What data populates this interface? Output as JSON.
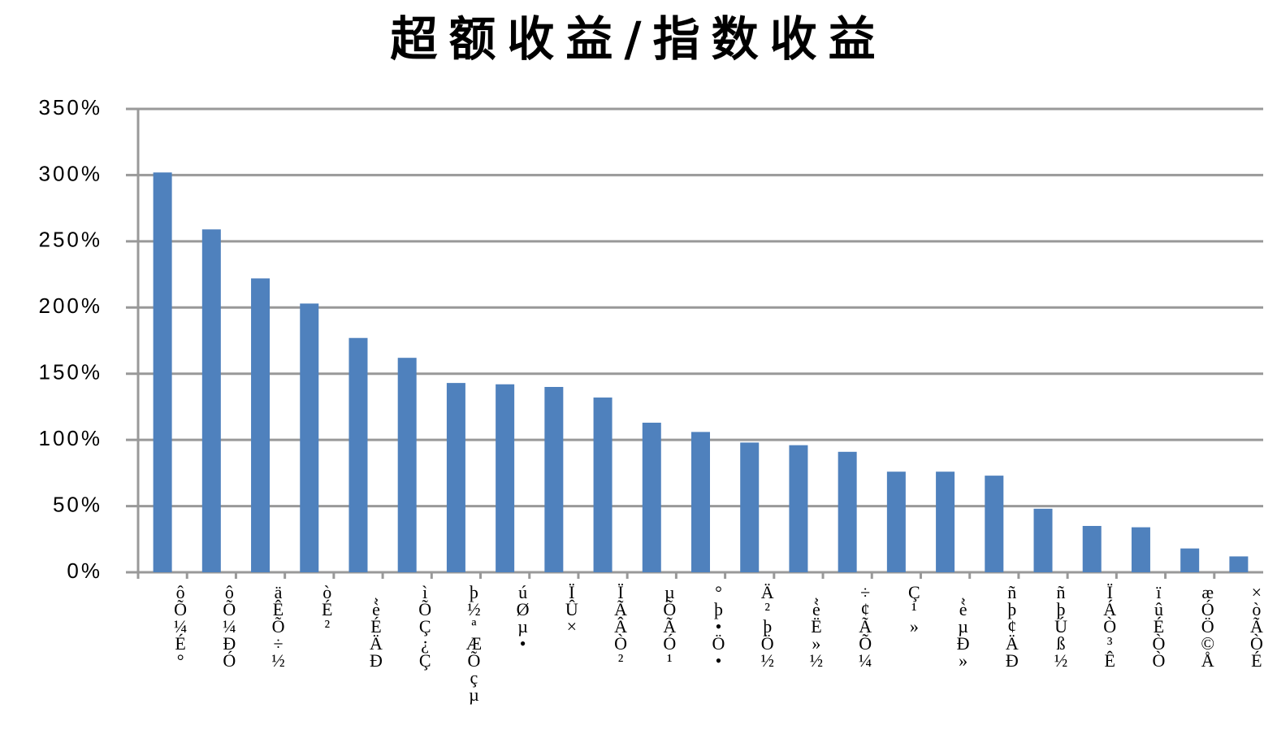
{
  "chart_data": {
    "type": "bar",
    "title": "超额收益/指数收益",
    "categories": [
      "ôÕ¼É°",
      "ôÕ¼ÐÓ",
      "äÊÕ÷½",
      "òÉ²",
      "¸èÉÄÐ",
      "ìÕÇ¿Ç",
      "þ½ªÆÕçµ",
      "úØµ•",
      "ÏÛ×",
      "ÏÃÂÒ²",
      "µÕÃÓ¹",
      "°þ•Ö•",
      "Ä²þÖ½",
      "¸èË»½",
      "÷¢ÃÕ¼",
      "Ç¹»",
      "¸èµÐ»",
      "ñþ¢ÄÐ",
      "ñþÚß½",
      "ÏÁÒ³Ê",
      "ïûÉÒÒ",
      "æÓÖ©Å",
      "×òÃÒÉ"
    ],
    "values": [
      302,
      259,
      222,
      203,
      177,
      162,
      143,
      142,
      140,
      132,
      113,
      106,
      98,
      96,
      91,
      76,
      76,
      73,
      48,
      35,
      34,
      18,
      12
    ],
    "color": "#4f81bd",
    "ylim": [
      0,
      350
    ],
    "yticks": [
      {
        "value": 0,
        "label": "0%"
      },
      {
        "value": 50,
        "label": "50%"
      },
      {
        "value": 100,
        "label": "100%"
      },
      {
        "value": 150,
        "label": "150%"
      },
      {
        "value": 200,
        "label": "200%"
      },
      {
        "value": 250,
        "label": "250%"
      },
      {
        "value": 300,
        "label": "300%"
      },
      {
        "value": 350,
        "label": "350%"
      }
    ],
    "grid": true
  }
}
